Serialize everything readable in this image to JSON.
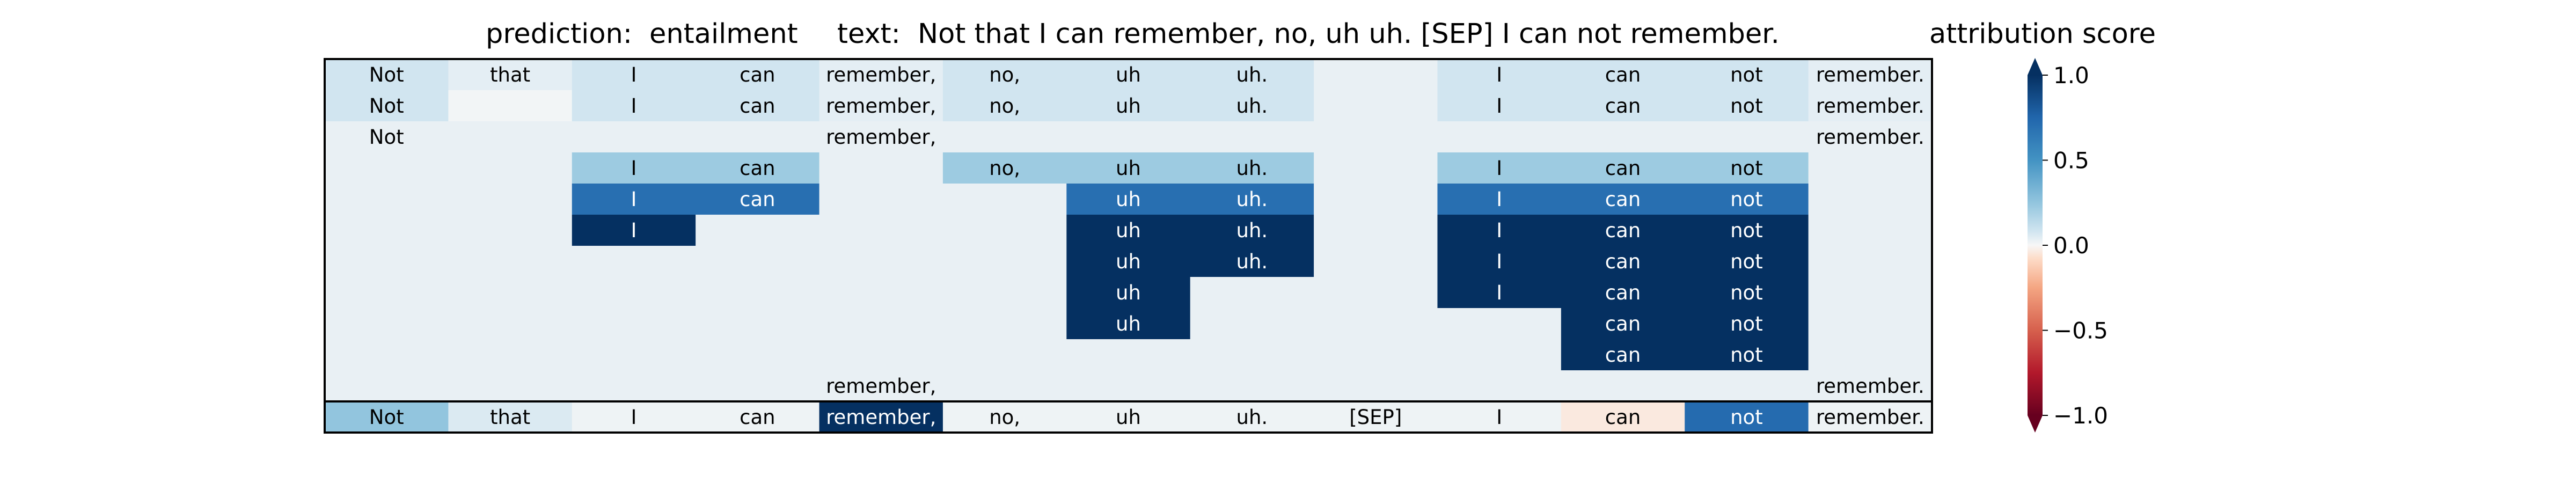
{
  "chart_data": {
    "type": "heatmap",
    "prediction_label": "prediction:",
    "prediction_value": "entailment",
    "text_label": "text:",
    "text_value": "Not that I can remember, no, uh uh. [SEP] I can not remember.",
    "colorbar_title": "attribution score",
    "colorbar_ticks": [
      "1.0",
      "0.5",
      "0.0",
      "−0.5",
      "−1.0"
    ],
    "colorbar_tick_values": [
      1.0,
      0.5,
      0.0,
      -0.5,
      -1.0
    ],
    "vmin": -1.0,
    "vmax": 1.0,
    "colormap": "RdBu",
    "tokens": [
      "Not",
      "that",
      "I",
      "can",
      "remember,",
      "no,",
      "uh",
      "uh.",
      "[SEP]",
      "I",
      "can",
      "not",
      "remember."
    ],
    "rows": [
      {
        "labels": [
          "Not",
          "that",
          "I",
          "can",
          "remember,",
          "no,",
          "uh",
          "uh.",
          "",
          "I",
          "can",
          "not",
          "remember."
        ],
        "values": [
          0.08,
          0.04,
          0.08,
          0.08,
          0.04,
          0.08,
          0.08,
          0.08,
          0.03,
          0.08,
          0.08,
          0.08,
          0.04
        ]
      },
      {
        "labels": [
          "Not",
          "",
          "I",
          "can",
          "remember,",
          "no,",
          "uh",
          "uh.",
          "",
          "I",
          "can",
          "not",
          "remember."
        ],
        "values": [
          0.08,
          0.01,
          0.08,
          0.08,
          0.04,
          0.08,
          0.08,
          0.08,
          0.03,
          0.08,
          0.08,
          0.08,
          0.04
        ]
      },
      {
        "labels": [
          "Not",
          "",
          "",
          "",
          "remember,",
          "",
          "",
          "",
          "",
          "",
          "",
          "",
          "remember."
        ],
        "values": [
          0.03,
          0.03,
          0.03,
          0.03,
          0.03,
          0.03,
          0.03,
          0.03,
          0.03,
          0.03,
          0.03,
          0.03,
          0.03
        ]
      },
      {
        "labels": [
          "",
          "",
          "I",
          "can",
          "",
          "no,",
          "uh",
          "uh.",
          "",
          "I",
          "can",
          "not",
          ""
        ],
        "values": [
          0.03,
          0.03,
          0.22,
          0.22,
          0.03,
          0.22,
          0.22,
          0.22,
          0.03,
          0.22,
          0.22,
          0.22,
          0.03
        ]
      },
      {
        "labels": [
          "",
          "",
          "I",
          "can",
          "",
          "",
          "uh",
          "uh.",
          "",
          "I",
          "can",
          "not",
          ""
        ],
        "values": [
          0.03,
          0.03,
          0.7,
          0.7,
          0.03,
          0.03,
          0.7,
          0.7,
          0.03,
          0.7,
          0.7,
          0.7,
          0.03
        ]
      },
      {
        "labels": [
          "",
          "",
          "I",
          "",
          "",
          "",
          "uh",
          "uh.",
          "",
          "I",
          "can",
          "not",
          ""
        ],
        "values": [
          0.03,
          0.03,
          1.0,
          0.03,
          0.03,
          0.03,
          1.0,
          1.0,
          0.03,
          1.0,
          1.0,
          1.0,
          0.03
        ]
      },
      {
        "labels": [
          "",
          "",
          "",
          "",
          "",
          "",
          "uh",
          "uh.",
          "",
          "I",
          "can",
          "not",
          ""
        ],
        "values": [
          0.03,
          0.03,
          0.03,
          0.03,
          0.03,
          0.03,
          1.0,
          1.0,
          0.03,
          1.0,
          1.0,
          1.0,
          0.03
        ]
      },
      {
        "labels": [
          "",
          "",
          "",
          "",
          "",
          "",
          "uh",
          "",
          "",
          "I",
          "can",
          "not",
          ""
        ],
        "values": [
          0.03,
          0.03,
          0.03,
          0.03,
          0.03,
          0.03,
          1.0,
          0.03,
          0.03,
          1.0,
          1.0,
          1.0,
          0.03
        ]
      },
      {
        "labels": [
          "",
          "",
          "",
          "",
          "",
          "",
          "uh",
          "",
          "",
          "",
          "can",
          "not",
          ""
        ],
        "values": [
          0.03,
          0.03,
          0.03,
          0.03,
          0.03,
          0.03,
          1.0,
          0.03,
          0.03,
          0.03,
          1.0,
          1.0,
          0.03
        ]
      },
      {
        "labels": [
          "",
          "",
          "",
          "",
          "",
          "",
          "",
          "",
          "",
          "",
          "can",
          "not",
          ""
        ],
        "values": [
          0.03,
          0.03,
          0.03,
          0.03,
          0.03,
          0.03,
          0.03,
          0.03,
          0.03,
          0.03,
          1.0,
          1.0,
          0.03
        ]
      },
      {
        "labels": [
          "",
          "",
          "",
          "",
          "remember,",
          "",
          "",
          "",
          "",
          "",
          "",
          "",
          "remember."
        ],
        "values": [
          0.03,
          0.03,
          0.03,
          0.03,
          0.03,
          0.03,
          0.03,
          0.03,
          0.03,
          0.03,
          0.03,
          0.03,
          0.03
        ]
      }
    ],
    "summary_row": {
      "labels": [
        "Not",
        "that",
        "I",
        "can",
        "remember,",
        "no,",
        "uh",
        "uh.",
        "[SEP]",
        "I",
        "can",
        "not",
        "remember."
      ],
      "values": [
        0.25,
        0.06,
        0.02,
        0.02,
        1.0,
        0.02,
        0.02,
        0.02,
        0.02,
        0.02,
        -0.04,
        0.72,
        0.02
      ]
    }
  }
}
